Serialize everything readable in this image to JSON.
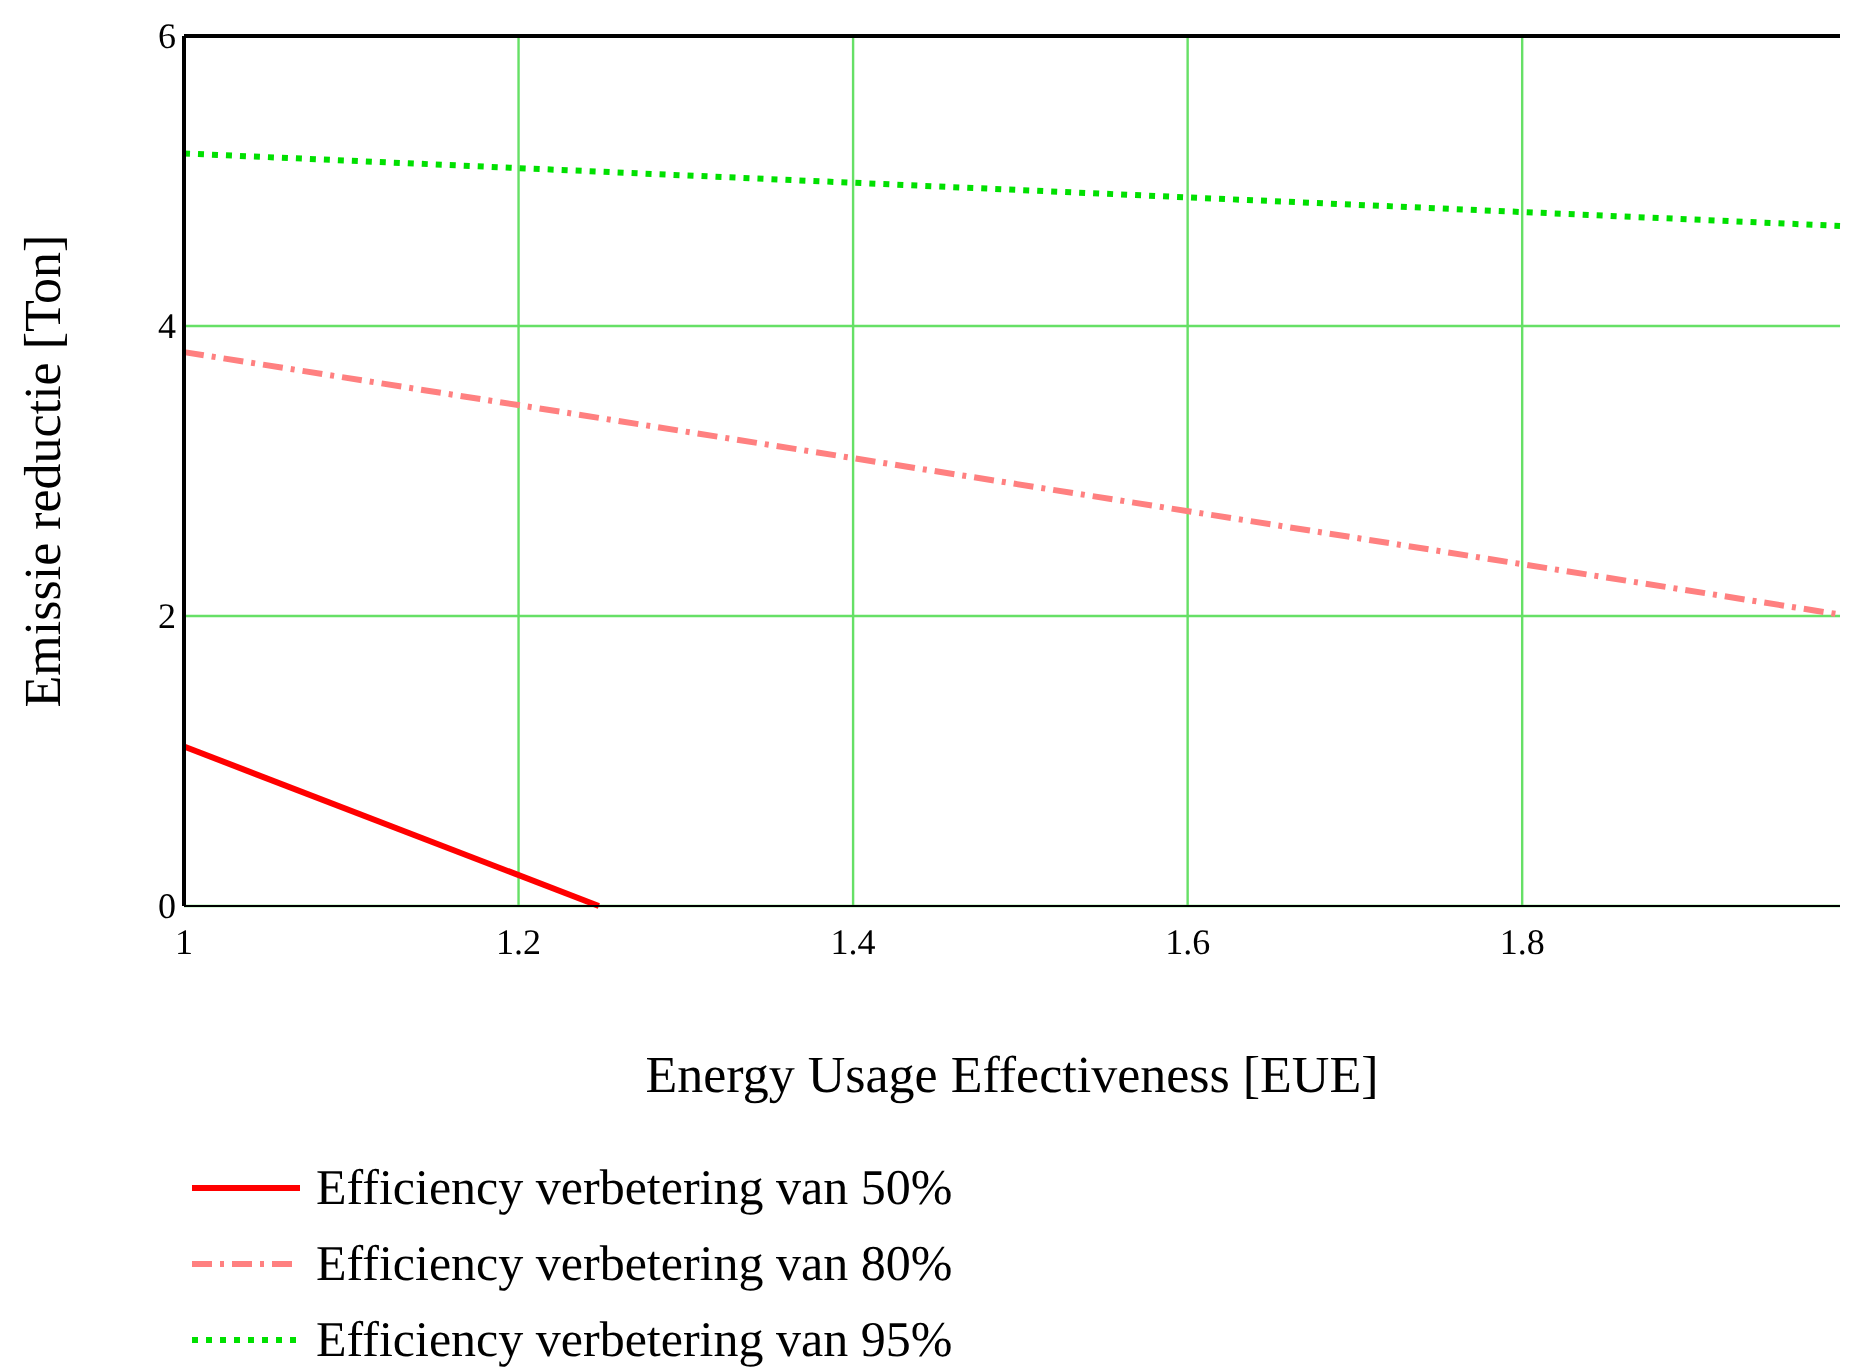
{
  "chart_data": {
    "type": "line",
    "xlabel": "Energy Usage Effectiveness [EUE]",
    "ylabel": "Emissie reductie [Ton]",
    "xlim": [
      1,
      1.99
    ],
    "ylim": [
      0,
      6
    ],
    "xticks": [
      1,
      1.2,
      1.4,
      1.6,
      1.8
    ],
    "yticks": [
      0,
      2,
      4,
      6
    ],
    "grid": true,
    "legend": "bottom",
    "series": [
      {
        "name": "Efficiency verbetering van 50%",
        "color": "#ff0000",
        "line_style": "solid",
        "x": [
          1,
          1.248
        ],
        "values": [
          1.1,
          0
        ]
      },
      {
        "name": "Efficiency verbetering van 80%",
        "color": "#ff8080",
        "line_style": "dashed",
        "x": [
          1,
          1.99
        ],
        "values": [
          3.82,
          2.01
        ]
      },
      {
        "name": "Efficiency verbetering van 95%",
        "color": "#00e000",
        "line_style": "dotted",
        "x": [
          1,
          1.99
        ],
        "values": [
          5.19,
          4.69
        ]
      }
    ]
  }
}
